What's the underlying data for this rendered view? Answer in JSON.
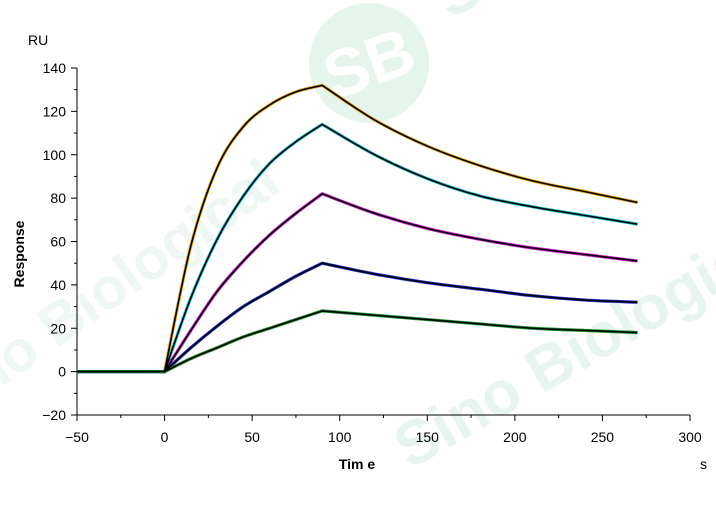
{
  "chart_data": {
    "type": "line",
    "title": "",
    "xlabel": "Tim e",
    "ylabel": "Response",
    "x_unit": "s",
    "y_unit": "RU",
    "xlim": [
      -50,
      300
    ],
    "ylim": [
      -20,
      140
    ],
    "x_ticks": [
      -50,
      0,
      50,
      100,
      150,
      200,
      250,
      300
    ],
    "y_ticks": [
      -20,
      0,
      20,
      40,
      60,
      80,
      100,
      120,
      140
    ],
    "grid": false,
    "legend": "none",
    "association_end": 90,
    "x_end": 270,
    "series": [
      {
        "color": "#e6a817",
        "x": [
          -50,
          0,
          15,
          30,
          45,
          60,
          75,
          90,
          120,
          150,
          180,
          210,
          240,
          270
        ],
        "values": [
          0,
          0,
          58,
          94,
          113,
          123,
          129,
          132,
          116,
          104,
          95,
          88,
          83,
          78
        ]
      },
      {
        "color": "#1ec8d2",
        "x": [
          -50,
          0,
          15,
          30,
          45,
          60,
          75,
          90,
          120,
          150,
          180,
          210,
          240,
          270
        ],
        "values": [
          0,
          0,
          34,
          61,
          81,
          96,
          106,
          114,
          100,
          89,
          81,
          76,
          72,
          68
        ]
      },
      {
        "color": "#d21ed2",
        "x": [
          -50,
          0,
          15,
          30,
          45,
          60,
          75,
          90,
          120,
          150,
          180,
          210,
          240,
          270
        ],
        "values": [
          0,
          0,
          19,
          37,
          51,
          63,
          73,
          82,
          73,
          66,
          61,
          57,
          54,
          51
        ]
      },
      {
        "color": "#1e32d2",
        "x": [
          -50,
          0,
          15,
          30,
          45,
          60,
          75,
          90,
          120,
          150,
          180,
          210,
          240,
          270
        ],
        "values": [
          0,
          0,
          11,
          21,
          30,
          37,
          44,
          50,
          45,
          41,
          38,
          35,
          33,
          32
        ]
      },
      {
        "color": "#1e9628",
        "x": [
          -50,
          0,
          15,
          30,
          45,
          60,
          75,
          90,
          120,
          150,
          180,
          210,
          240,
          270
        ],
        "values": [
          0,
          0,
          6,
          11,
          16,
          20,
          24,
          28,
          26,
          24,
          22,
          20,
          19,
          18
        ]
      }
    ],
    "fit_color": "#000000"
  },
  "watermark": {
    "logo_text": "SB",
    "brand_text": "Sino Biological",
    "color": "#e3f3ea"
  }
}
